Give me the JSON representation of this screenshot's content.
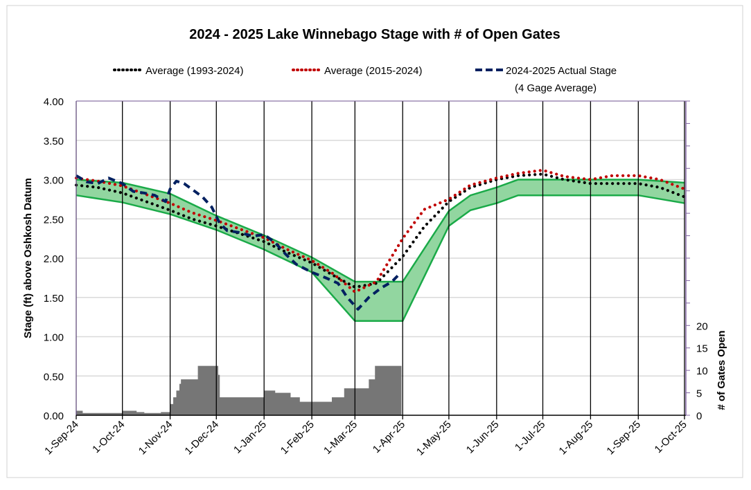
{
  "chart_data": {
    "type": "line",
    "title": "2024 - 2025 Lake Winnebago Stage with # of Open Gates",
    "ylabel": "Stage (ft) above Oshkosh Datum",
    "y2label": "# of Gates Open",
    "ylim": [
      0,
      4
    ],
    "y2lim": [
      0,
      70
    ],
    "yticks": [
      "0.00",
      "0.50",
      "1.00",
      "1.50",
      "2.00",
      "2.50",
      "3.00",
      "3.50",
      "4.00"
    ],
    "y2ticks": [
      "0",
      "5",
      "10",
      "15",
      "20"
    ],
    "xlim": [
      "2024-09-01",
      "2025-10-01"
    ],
    "xticks": [
      {
        "date": "2024-09-01",
        "label": "1-Sep-24"
      },
      {
        "date": "2024-10-01",
        "label": "1-Oct-24"
      },
      {
        "date": "2024-11-01",
        "label": "1-Nov-24"
      },
      {
        "date": "2024-12-01",
        "label": "1-Dec-24"
      },
      {
        "date": "2025-01-01",
        "label": "1-Jan-25"
      },
      {
        "date": "2025-02-01",
        "label": "1-Feb-25"
      },
      {
        "date": "2025-03-01",
        "label": "1-Mar-25"
      },
      {
        "date": "2025-04-01",
        "label": "1-Apr-25"
      },
      {
        "date": "2025-05-01",
        "label": "1-May-25"
      },
      {
        "date": "2025-06-01",
        "label": "1-Jun-25"
      },
      {
        "date": "2025-07-01",
        "label": "1-Jul-25"
      },
      {
        "date": "2025-08-01",
        "label": "1-Aug-25"
      },
      {
        "date": "2025-09-01",
        "label": "1-Sep-25"
      },
      {
        "date": "2025-10-01",
        "label": "1-Oct-25"
      }
    ],
    "grid": true,
    "legend_position": "top",
    "band": {
      "color": "#92d6a0",
      "edge": "#1aaa48",
      "upper": [
        [
          "2024-09-01",
          3.0
        ],
        [
          "2024-10-01",
          2.96
        ],
        [
          "2024-11-01",
          2.82
        ],
        [
          "2024-12-01",
          2.54
        ],
        [
          "2025-01-01",
          2.29
        ],
        [
          "2025-02-01",
          2.01
        ],
        [
          "2025-03-01",
          1.7
        ],
        [
          "2025-04-01",
          1.7
        ],
        [
          "2025-05-01",
          2.6
        ],
        [
          "2025-05-15",
          2.8
        ],
        [
          "2025-06-01",
          2.9
        ],
        [
          "2025-06-15",
          3.0
        ],
        [
          "2025-09-01",
          3.0
        ],
        [
          "2025-10-01",
          2.96
        ]
      ],
      "lower": [
        [
          "2024-09-01",
          2.8
        ],
        [
          "2024-10-01",
          2.71
        ],
        [
          "2024-11-01",
          2.56
        ],
        [
          "2024-12-01",
          2.36
        ],
        [
          "2025-01-01",
          2.11
        ],
        [
          "2025-02-01",
          1.82
        ],
        [
          "2025-03-01",
          1.2
        ],
        [
          "2025-04-01",
          1.2
        ],
        [
          "2025-05-01",
          2.41
        ],
        [
          "2025-05-15",
          2.61
        ],
        [
          "2025-06-01",
          2.7
        ],
        [
          "2025-06-15",
          2.8
        ],
        [
          "2025-09-01",
          2.8
        ],
        [
          "2025-10-01",
          2.7
        ]
      ]
    },
    "series": [
      {
        "name": "Average (1993-2024)",
        "color": "#000000",
        "style": "dotted",
        "points": [
          [
            "2024-09-01",
            2.93
          ],
          [
            "2024-09-15",
            2.9
          ],
          [
            "2024-10-01",
            2.83
          ],
          [
            "2024-10-15",
            2.73
          ],
          [
            "2024-11-01",
            2.61
          ],
          [
            "2024-11-15",
            2.5
          ],
          [
            "2024-12-01",
            2.41
          ],
          [
            "2024-12-15",
            2.32
          ],
          [
            "2025-01-01",
            2.21
          ],
          [
            "2025-01-15",
            2.08
          ],
          [
            "2025-02-01",
            1.94
          ],
          [
            "2025-02-15",
            1.78
          ],
          [
            "2025-03-01",
            1.63
          ],
          [
            "2025-03-15",
            1.68
          ],
          [
            "2025-04-01",
            2.02
          ],
          [
            "2025-04-15",
            2.4
          ],
          [
            "2025-05-01",
            2.72
          ],
          [
            "2025-05-15",
            2.9
          ],
          [
            "2025-06-01",
            3.0
          ],
          [
            "2025-06-15",
            3.05
          ],
          [
            "2025-07-01",
            3.07
          ],
          [
            "2025-07-15",
            3.0
          ],
          [
            "2025-08-01",
            2.95
          ],
          [
            "2025-08-15",
            2.95
          ],
          [
            "2025-09-01",
            2.95
          ],
          [
            "2025-09-15",
            2.9
          ],
          [
            "2025-10-01",
            2.78
          ]
        ]
      },
      {
        "name": "Average (2015-2024)",
        "color": "#c00000",
        "style": "dotted",
        "points": [
          [
            "2024-09-01",
            3.02
          ],
          [
            "2024-09-15",
            2.98
          ],
          [
            "2024-10-01",
            2.92
          ],
          [
            "2024-10-15",
            2.82
          ],
          [
            "2024-11-01",
            2.7
          ],
          [
            "2024-11-15",
            2.58
          ],
          [
            "2024-12-01",
            2.48
          ],
          [
            "2024-12-15",
            2.38
          ],
          [
            "2025-01-01",
            2.26
          ],
          [
            "2025-01-15",
            2.12
          ],
          [
            "2025-02-01",
            1.97
          ],
          [
            "2025-02-15",
            1.8
          ],
          [
            "2025-03-01",
            1.57
          ],
          [
            "2025-03-15",
            1.7
          ],
          [
            "2025-04-01",
            2.25
          ],
          [
            "2025-04-15",
            2.62
          ],
          [
            "2025-05-01",
            2.75
          ],
          [
            "2025-05-15",
            2.93
          ],
          [
            "2025-06-01",
            3.02
          ],
          [
            "2025-06-15",
            3.08
          ],
          [
            "2025-07-01",
            3.12
          ],
          [
            "2025-07-15",
            3.04
          ],
          [
            "2025-08-01",
            3.0
          ],
          [
            "2025-08-15",
            3.05
          ],
          [
            "2025-09-01",
            3.05
          ],
          [
            "2025-09-15",
            3.0
          ],
          [
            "2025-10-01",
            2.88
          ]
        ]
      },
      {
        "name": "2024-2025 Actual Stage",
        "name_line2": "(4 Gage Average)",
        "color": "#002060",
        "style": "dashed",
        "points": [
          [
            "2024-09-01",
            3.05
          ],
          [
            "2024-09-08",
            2.97
          ],
          [
            "2024-09-15",
            2.95
          ],
          [
            "2024-09-22",
            3.02
          ],
          [
            "2024-10-01",
            2.95
          ],
          [
            "2024-10-08",
            2.85
          ],
          [
            "2024-10-15",
            2.83
          ],
          [
            "2024-10-22",
            2.8
          ],
          [
            "2024-10-29",
            2.72
          ],
          [
            "2024-11-01",
            2.88
          ],
          [
            "2024-11-05",
            2.98
          ],
          [
            "2024-11-10",
            2.95
          ],
          [
            "2024-11-15",
            2.88
          ],
          [
            "2024-11-22",
            2.78
          ],
          [
            "2024-11-28",
            2.65
          ],
          [
            "2024-12-03",
            2.45
          ],
          [
            "2024-12-08",
            2.35
          ],
          [
            "2024-12-15",
            2.33
          ],
          [
            "2024-12-25",
            2.28
          ],
          [
            "2025-01-01",
            2.3
          ],
          [
            "2025-01-08",
            2.2
          ],
          [
            "2025-01-15",
            2.05
          ],
          [
            "2025-01-22",
            1.92
          ],
          [
            "2025-02-01",
            1.82
          ],
          [
            "2025-02-10",
            1.75
          ],
          [
            "2025-02-18",
            1.68
          ],
          [
            "2025-02-24",
            1.5
          ],
          [
            "2025-03-03",
            1.35
          ],
          [
            "2025-03-10",
            1.5
          ],
          [
            "2025-03-18",
            1.62
          ],
          [
            "2025-03-25",
            1.7
          ],
          [
            "2025-03-29",
            1.78
          ]
        ]
      }
    ],
    "gates": {
      "color": "#767676",
      "steps": [
        [
          "2024-09-01",
          1
        ],
        [
          "2024-09-05",
          0.5
        ],
        [
          "2024-10-01",
          1
        ],
        [
          "2024-10-10",
          0.7
        ],
        [
          "2024-10-15",
          0.5
        ],
        [
          "2024-10-26",
          0.7
        ],
        [
          "2024-11-01",
          2.5
        ],
        [
          "2024-11-03",
          4
        ],
        [
          "2024-11-05",
          5.5
        ],
        [
          "2024-11-07",
          7
        ],
        [
          "2024-11-08",
          8
        ],
        [
          "2024-11-19",
          11
        ],
        [
          "2024-12-02",
          9
        ],
        [
          "2024-12-03",
          4
        ],
        [
          "2025-01-01",
          5.5
        ],
        [
          "2025-01-08",
          5
        ],
        [
          "2025-01-18",
          4
        ],
        [
          "2025-01-24",
          3
        ],
        [
          "2025-02-14",
          4
        ],
        [
          "2025-02-22",
          6
        ],
        [
          "2025-03-10",
          8
        ],
        [
          "2025-03-14",
          11
        ],
        [
          "2025-03-31",
          0
        ]
      ]
    }
  }
}
